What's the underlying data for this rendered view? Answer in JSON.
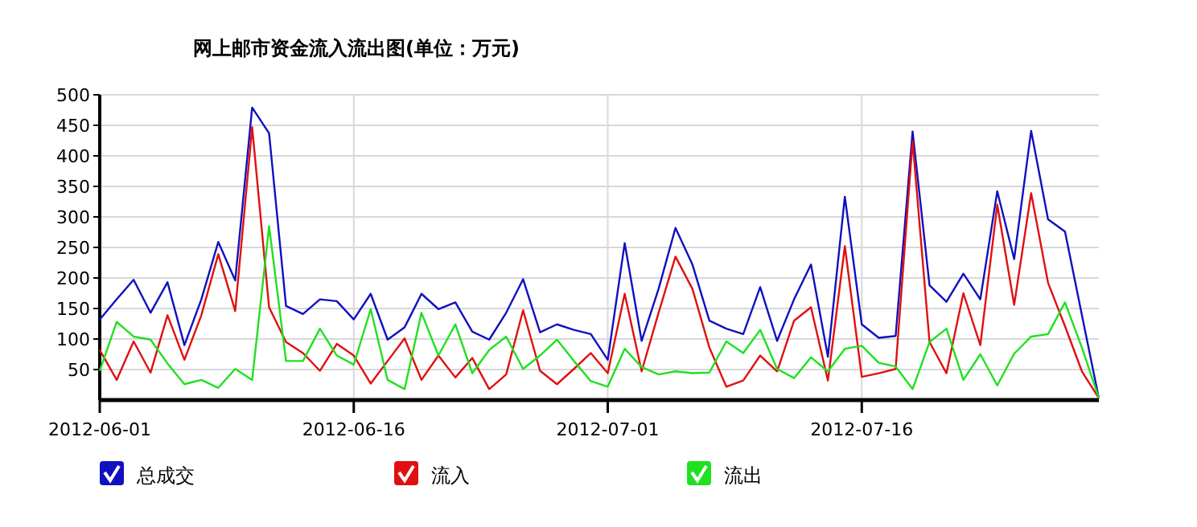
{
  "chart_data": {
    "type": "line",
    "title": "网上邮市资金流入流出图(单位：万元)",
    "x": [
      "2012-06-01",
      "2012-06-02",
      "2012-06-03",
      "2012-06-04",
      "2012-06-05",
      "2012-06-06",
      "2012-06-07",
      "2012-06-08",
      "2012-06-09",
      "2012-06-10",
      "2012-06-11",
      "2012-06-12",
      "2012-06-13",
      "2012-06-14",
      "2012-06-15",
      "2012-06-16",
      "2012-06-17",
      "2012-06-18",
      "2012-06-19",
      "2012-06-20",
      "2012-06-21",
      "2012-06-22",
      "2012-06-23",
      "2012-06-24",
      "2012-06-25",
      "2012-06-26",
      "2012-06-27",
      "2012-06-28",
      "2012-06-29",
      "2012-06-30",
      "2012-07-01",
      "2012-07-02",
      "2012-07-03",
      "2012-07-04",
      "2012-07-05",
      "2012-07-06",
      "2012-07-07",
      "2012-07-08",
      "2012-07-09",
      "2012-07-10",
      "2012-07-11",
      "2012-07-12",
      "2012-07-13",
      "2012-07-14",
      "2012-07-15",
      "2012-07-16",
      "2012-07-17",
      "2012-07-18",
      "2012-07-19",
      "2012-07-20",
      "2012-07-21",
      "2012-07-22",
      "2012-07-23",
      "2012-07-24",
      "2012-07-25",
      "2012-07-26",
      "2012-07-27",
      "2012-07-28",
      "2012-07-29",
      "2012-07-30"
    ],
    "series": [
      {
        "name": "总成交",
        "color": "#1010c0",
        "values": [
          132,
          165,
          197,
          143,
          193,
          90,
          165,
          259,
          196,
          479,
          437,
          154,
          141,
          165,
          162,
          132,
          174,
          99,
          119,
          174,
          149,
          160,
          112,
          99,
          143,
          198,
          111,
          124,
          115,
          108,
          66,
          257,
          97,
          182,
          282,
          222,
          130,
          117,
          108,
          185,
          97,
          165,
          222,
          71,
          333,
          124,
          102,
          105,
          440,
          188,
          161,
          207,
          165,
          342,
          231,
          441,
          296,
          276,
          139,
          3
        ]
      },
      {
        "name": "流入",
        "color": "#e01010",
        "values": [
          82,
          33,
          96,
          45,
          139,
          66,
          139,
          239,
          146,
          447,
          152,
          95,
          77,
          48,
          92,
          73,
          27,
          64,
          101,
          33,
          73,
          37,
          69,
          18,
          42,
          147,
          48,
          26,
          51,
          77,
          44,
          174,
          47,
          143,
          235,
          182,
          86,
          22,
          32,
          73,
          47,
          130,
          152,
          32,
          252,
          38,
          44,
          51,
          424,
          95,
          44,
          175,
          90,
          320,
          156,
          339,
          192,
          121,
          47,
          3
        ]
      },
      {
        "name": "流出",
        "color": "#20e020",
        "values": [
          48,
          128,
          104,
          99,
          60,
          26,
          33,
          20,
          51,
          33,
          285,
          64,
          64,
          117,
          73,
          58,
          149,
          33,
          18,
          143,
          73,
          124,
          44,
          82,
          104,
          51,
          73,
          99,
          64,
          31,
          22,
          84,
          54,
          42,
          47,
          44,
          45,
          96,
          77,
          115,
          51,
          36,
          70,
          47,
          84,
          89,
          61,
          55,
          18,
          95,
          117,
          33,
          75,
          24,
          76,
          104,
          108,
          160,
          86,
          3
        ]
      }
    ],
    "xlim": [
      "2012-06-01",
      "2012-07-30"
    ],
    "xticks": [
      "2012-06-01",
      "2012-06-16",
      "2012-07-01",
      "2012-07-16"
    ],
    "ylim": [
      0,
      500
    ],
    "yticks": [
      50,
      100,
      150,
      200,
      250,
      300,
      350,
      400,
      450,
      500
    ],
    "grid": true,
    "legend": "bottom",
    "marker": "none",
    "line_style": "solid"
  }
}
